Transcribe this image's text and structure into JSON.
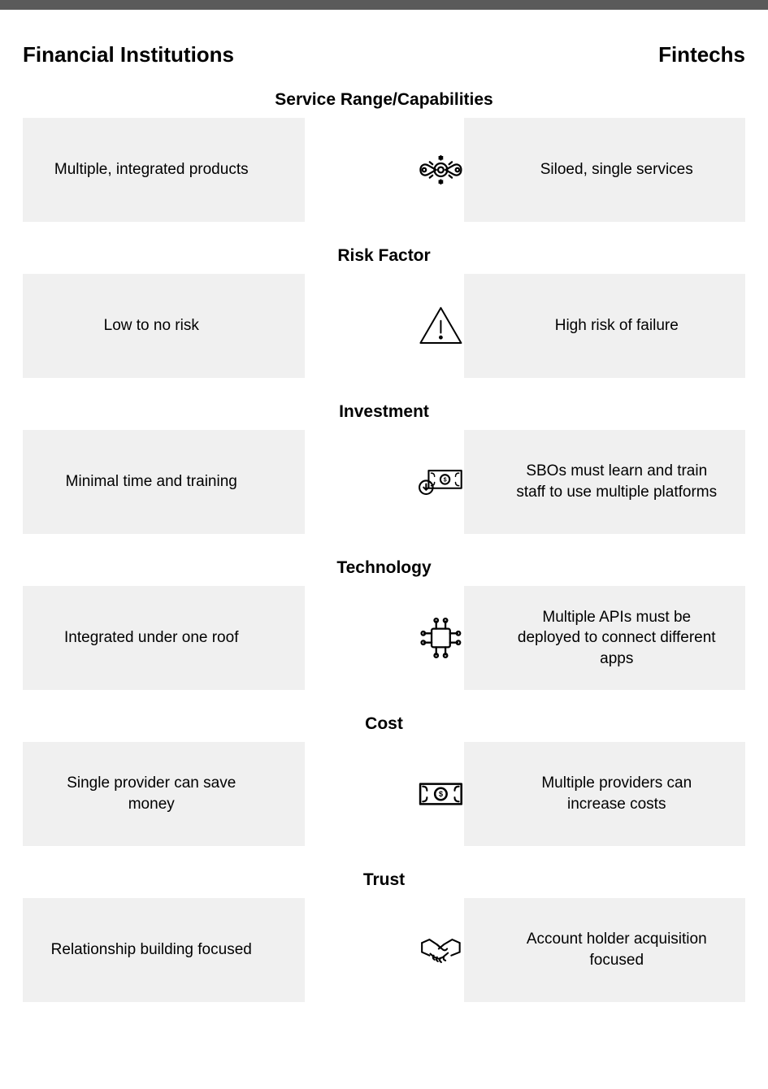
{
  "type": "infographic",
  "layout": "comparison-table",
  "background_color": "#ffffff",
  "topbar_color": "#5a5a5a",
  "row_background": "#f0f0f0",
  "hex_fill": "#ffffff",
  "text_color": "#000000",
  "icon_color": "#000000",
  "header_fontsize": 26,
  "title_fontsize": 21,
  "body_fontsize": 19,
  "headers": {
    "left": "Financial Institutions",
    "right": "Fintechs"
  },
  "rows": [
    {
      "title": "Service Range/Capabilities",
      "left": "Multiple, integrated products",
      "right": "Siloed, single services",
      "icon": "gear-wrench-icon"
    },
    {
      "title": "Risk Factor",
      "left": "Low to no risk",
      "right": "High risk of failure",
      "icon": "warning-icon"
    },
    {
      "title": "Investment",
      "left": "Minimal time and training",
      "right": "SBOs must learn and train staff to use multiple platforms",
      "icon": "money-down-icon"
    },
    {
      "title": "Technology",
      "left": "Integrated under one roof",
      "right": "Multiple APIs must be deployed to connect different apps",
      "icon": "chip-icon"
    },
    {
      "title": "Cost",
      "left": "Single provider can save money",
      "right": "Multiple providers can increase costs",
      "icon": "dollar-bill-icon"
    },
    {
      "title": "Trust",
      "left": "Relationship building focused",
      "right": "Account holder acquisition focused",
      "icon": "handshake-icon"
    }
  ]
}
